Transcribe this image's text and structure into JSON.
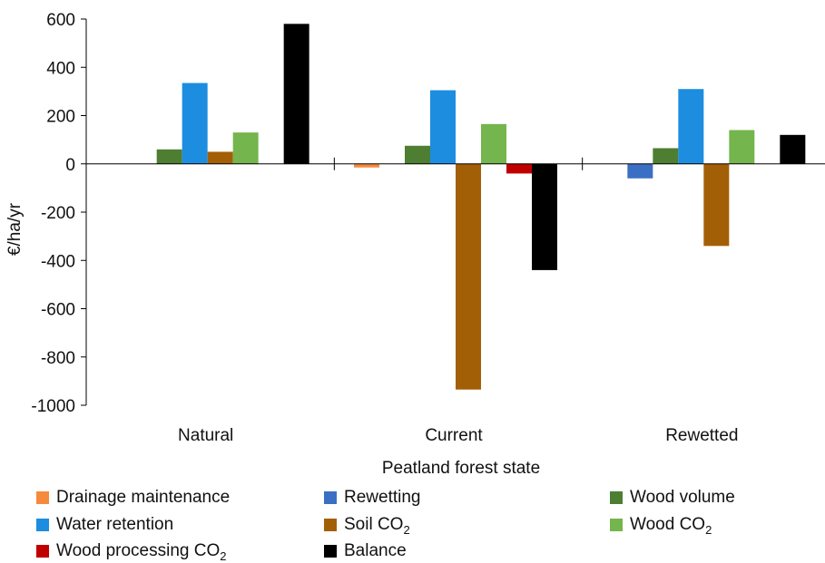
{
  "chart_data": {
    "type": "bar",
    "title": "",
    "xlabel": "Peatland forest state",
    "ylabel": "€/ha/yr",
    "ylim": [
      -1000,
      600
    ],
    "yticks": [
      600,
      400,
      200,
      0,
      -200,
      -400,
      -600,
      -800,
      -1000
    ],
    "ytick_labels": [
      "600",
      "400",
      "200",
      "0",
      "-200",
      "-400",
      "-600",
      "-800",
      "-1000"
    ],
    "grid": false,
    "legend_position": "bottom",
    "categories": [
      "Natural",
      "Current",
      "Rewetted"
    ],
    "series": [
      {
        "name": "Drainage maintenance",
        "name_sub": "",
        "color": "#f58a3c",
        "values": [
          0,
          -15,
          0
        ]
      },
      {
        "name": "Rewetting",
        "name_sub": "",
        "color": "#3a6fc4",
        "values": [
          0,
          0,
          -60
        ]
      },
      {
        "name": "Wood volume",
        "name_sub": "",
        "color": "#4e7e32",
        "values": [
          60,
          75,
          65
        ]
      },
      {
        "name": "Water retention",
        "name_sub": "",
        "color": "#1d8de0",
        "values": [
          335,
          305,
          310
        ]
      },
      {
        "name": "Soil CO",
        "name_sub": "2",
        "color": "#a35f06",
        "values": [
          50,
          -935,
          -340
        ]
      },
      {
        "name": "Wood CO",
        "name_sub": "2",
        "color": "#74b54d",
        "values": [
          130,
          165,
          140
        ]
      },
      {
        "name": "Wood processing CO",
        "name_sub": "2",
        "color": "#c00000",
        "values": [
          0,
          -40,
          0
        ]
      },
      {
        "name": "Balance",
        "name_sub": "",
        "color": "#000000",
        "values": [
          580,
          -440,
          120
        ]
      }
    ]
  }
}
